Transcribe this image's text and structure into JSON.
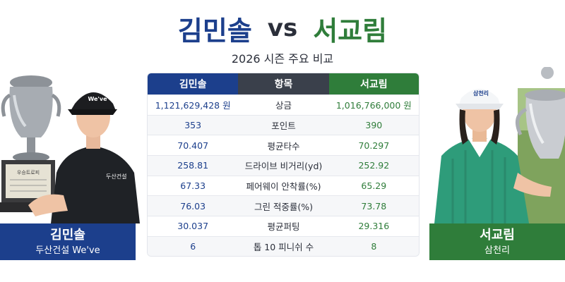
{
  "title": {
    "left": "김민솔",
    "vs": "vs",
    "right": "서교림"
  },
  "subtitle": "2026 시즌 주요 비교",
  "table": {
    "headers": [
      "김민솔",
      "항목",
      "서교림"
    ],
    "rows": [
      {
        "left": "1,121,629,428 원",
        "label": "상금",
        "right": "1,016,766,000 원"
      },
      {
        "left": "353",
        "label": "포인트",
        "right": "390"
      },
      {
        "left": "70.407",
        "label": "평균타수",
        "right": "70.297"
      },
      {
        "left": "258.81",
        "label": "드라이브 비거리(yd)",
        "right": "252.92"
      },
      {
        "left": "67.33",
        "label": "페어웨이 안착률(%)",
        "right": "65.29"
      },
      {
        "left": "76.03",
        "label": "그린 적중률(%)",
        "right": "73.78"
      },
      {
        "left": "30.037",
        "label": "평균퍼팅",
        "right": "29.316"
      },
      {
        "left": "6",
        "label": "톱 10 피니쉬 수",
        "right": "8"
      }
    ]
  },
  "players": {
    "left": {
      "name": "김민솔",
      "team": "두산건설 We've",
      "cap": "We've",
      "shirt": "두산건설",
      "trophy_plate": "우승트로피"
    },
    "right": {
      "name": "서교림",
      "team": "삼천리",
      "cap": "삼천리"
    }
  },
  "colors": {
    "blue": "#1c3f8c",
    "green": "#2f7d3a",
    "dark": "#3a404b"
  }
}
